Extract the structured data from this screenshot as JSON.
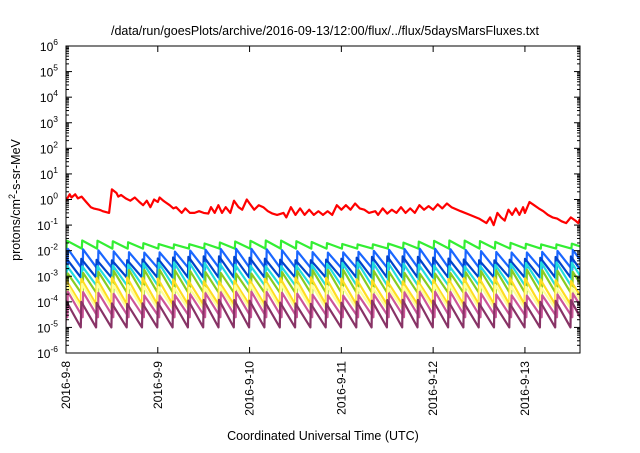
{
  "chart_data": {
    "type": "line",
    "title": "/data/run/goesPlots/archive/2016-09-13/12:00/flux/../flux/5daysMarsFluxes.txt",
    "xlabel": "Coordinated Universal Time (UTC)",
    "ylabel": {
      "base": "protons/cm",
      "sup": "2",
      "rest": "-s-sr-MeV"
    },
    "xlim": [
      0,
      5.6
    ],
    "x_unit": "days since 2016-9-8 00:00",
    "xticks": [
      {
        "x": 0,
        "label": "2016-9-8"
      },
      {
        "x": 1,
        "label": "2016-9-9"
      },
      {
        "x": 2,
        "label": "2016-9-10"
      },
      {
        "x": 3,
        "label": "2016-9-11"
      },
      {
        "x": 4,
        "label": "2016-9-12"
      },
      {
        "x": 5,
        "label": "2016-9-13"
      }
    ],
    "yscale": "log",
    "ylim": [
      1e-06,
      1000000.0
    ],
    "yticks": [
      {
        "exp": -6,
        "label": "10",
        "sup": "-6"
      },
      {
        "exp": -5,
        "label": "10",
        "sup": "-5"
      },
      {
        "exp": -4,
        "label": "10",
        "sup": "-4"
      },
      {
        "exp": -3,
        "label": "10",
        "sup": "-3"
      },
      {
        "exp": -2,
        "label": "10",
        "sup": "-2"
      },
      {
        "exp": -1,
        "label": "10",
        "sup": "-1"
      },
      {
        "exp": 0,
        "label": "10",
        "sup": "0"
      },
      {
        "exp": 1,
        "label": "10",
        "sup": "1"
      },
      {
        "exp": 2,
        "label": "10",
        "sup": "2"
      },
      {
        "exp": 3,
        "label": "10",
        "sup": "3"
      },
      {
        "exp": 4,
        "label": "10",
        "sup": "4"
      },
      {
        "exp": 5,
        "label": "10",
        "sup": "5"
      },
      {
        "exp": 6,
        "label": "10",
        "sup": "6"
      }
    ],
    "grid": false,
    "series": [
      {
        "color": "#ff0000",
        "x": [
          0,
          0.04,
          0.06,
          0.1,
          0.13,
          0.17,
          0.22,
          0.27,
          0.3,
          0.33,
          0.36,
          0.38,
          0.4,
          0.44,
          0.47,
          0.5,
          0.55,
          0.57,
          0.6,
          0.65,
          0.7,
          0.75,
          0.8,
          0.84,
          0.88,
          0.92,
          0.96,
          1.0,
          1.02,
          1.06,
          1.08,
          1.13,
          1.17,
          1.2,
          1.26,
          1.3,
          1.35,
          1.4,
          1.45,
          1.5,
          1.55,
          1.58,
          1.62,
          1.66,
          1.7,
          1.74,
          1.79,
          1.83,
          1.88,
          1.92,
          1.97,
          2.0,
          2.05,
          2.1,
          2.15,
          2.2,
          2.25,
          2.3,
          2.37,
          2.4,
          2.45,
          2.5,
          2.55,
          2.6,
          2.65,
          2.7,
          2.75,
          2.8,
          2.85,
          2.9,
          2.95,
          3.0,
          3.05,
          3.1,
          3.15,
          3.2,
          3.25,
          3.3,
          3.37,
          3.4,
          3.45,
          3.5,
          3.55,
          3.6,
          3.65,
          3.7,
          3.75,
          3.8,
          3.85,
          3.9,
          3.95,
          4.0,
          4.05,
          4.1,
          4.15,
          4.2,
          4.3,
          4.4,
          4.5,
          4.58,
          4.62,
          4.66,
          4.7,
          4.74,
          4.78,
          4.82,
          4.86,
          4.9,
          4.94,
          4.98,
          5.0,
          5.05,
          5.1,
          5.15,
          5.2,
          5.25,
          5.3,
          5.35,
          5.4,
          5.45,
          5.5,
          5.55,
          5.58,
          5.6
        ],
        "y": [
          0.9,
          1.6,
          1.2,
          1.6,
          1.1,
          1.3,
          0.8,
          0.5,
          0.45,
          0.42,
          0.4,
          0.38,
          0.35,
          0.32,
          0.3,
          2.5,
          1.8,
          1.3,
          1.5,
          1.1,
          0.9,
          1.2,
          0.8,
          0.6,
          0.9,
          0.5,
          1.0,
          0.8,
          1.2,
          0.9,
          0.8,
          0.6,
          0.45,
          0.5,
          0.3,
          0.45,
          0.3,
          0.3,
          0.35,
          0.3,
          0.28,
          0.5,
          0.3,
          0.6,
          0.3,
          0.5,
          0.3,
          0.9,
          0.5,
          0.4,
          1.0,
          0.7,
          0.4,
          0.6,
          0.5,
          0.35,
          0.28,
          0.25,
          0.3,
          0.2,
          0.5,
          0.25,
          0.45,
          0.25,
          0.4,
          0.25,
          0.35,
          0.25,
          0.35,
          0.25,
          0.6,
          0.4,
          0.6,
          0.4,
          0.7,
          0.45,
          0.4,
          0.3,
          0.35,
          0.25,
          0.45,
          0.28,
          0.4,
          0.3,
          0.5,
          0.3,
          0.45,
          0.3,
          0.6,
          0.4,
          0.55,
          0.4,
          0.65,
          0.45,
          0.7,
          0.5,
          0.35,
          0.25,
          0.18,
          0.12,
          0.2,
          0.1,
          0.3,
          0.2,
          0.15,
          0.4,
          0.25,
          0.45,
          0.25,
          0.5,
          0.3,
          0.8,
          0.6,
          0.45,
          0.35,
          0.25,
          0.2,
          0.18,
          0.14,
          0.12,
          0.2,
          0.15,
          0.12,
          0.18
        ]
      },
      {
        "color": "#33ee33",
        "sawtooth": {
          "peak": 0.025,
          "trough": 0.012
        }
      },
      {
        "color": "#1a66ff",
        "sawtooth": {
          "peak": 0.012,
          "trough": 0.0018
        }
      },
      {
        "color": "#0044cc",
        "sawtooth": {
          "peak": 0.006,
          "trough": 0.0009
        }
      },
      {
        "color": "#22dddd",
        "sawtooth": {
          "peak": 0.0035,
          "trough": 0.0004
        }
      },
      {
        "color": "#88cc22",
        "sawtooth": {
          "peak": 0.0018,
          "trough": 0.00018
        }
      },
      {
        "color": "#ffdd22",
        "sawtooth": {
          "peak": 0.0009,
          "trough": 8e-05
        }
      },
      {
        "color": "#ffff99",
        "sawtooth": {
          "peak": 0.0005,
          "trough": 5e-05
        }
      },
      {
        "color": "#cc5599",
        "sawtooth": {
          "peak": 0.00025,
          "trough": 2.5e-05
        }
      },
      {
        "color": "#883366",
        "sawtooth": {
          "peak": 0.00012,
          "trough": 1e-05
        }
      }
    ],
    "sawtooth_period": 0.1667
  }
}
